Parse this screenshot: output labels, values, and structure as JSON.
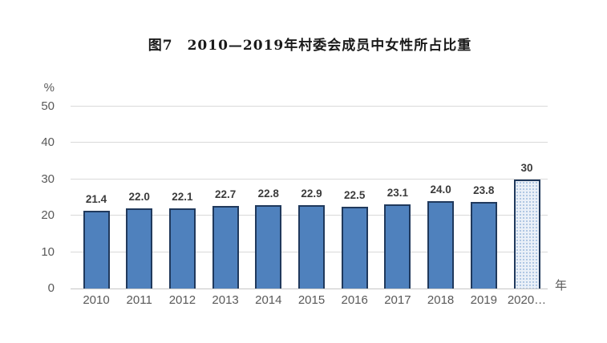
{
  "chart_data": {
    "type": "bar",
    "title": "图7　2010—2019年村委会成员中女性所占比重",
    "categories": [
      "2010",
      "2011",
      "2012",
      "2013",
      "2014",
      "2015",
      "2016",
      "2017",
      "2018",
      "2019",
      "2020…"
    ],
    "values": [
      21.4,
      22.0,
      22.1,
      22.7,
      22.8,
      22.9,
      22.5,
      23.1,
      24.0,
      23.8,
      30
    ],
    "value_labels": [
      "21.4",
      "22.0",
      "22.1",
      "22.7",
      "22.8",
      "22.9",
      "22.5",
      "23.1",
      "24.0",
      "23.8",
      "30"
    ],
    "unit_y": "%",
    "unit_x": "年",
    "y_ticks": [
      "0",
      "10",
      "20",
      "30",
      "40",
      "50"
    ],
    "ylim": [
      0,
      50
    ],
    "grid": true,
    "legend": "none",
    "bar_fill_color": "#4f81bd",
    "bar_border_color": "#20395c",
    "highlight_last_bar": true,
    "highlight_fill_color": "#eaf0f8",
    "highlight_dot_color": "#9db9dc",
    "axis_label_color": "#595959",
    "value_label_color": "#3b3b3b"
  }
}
